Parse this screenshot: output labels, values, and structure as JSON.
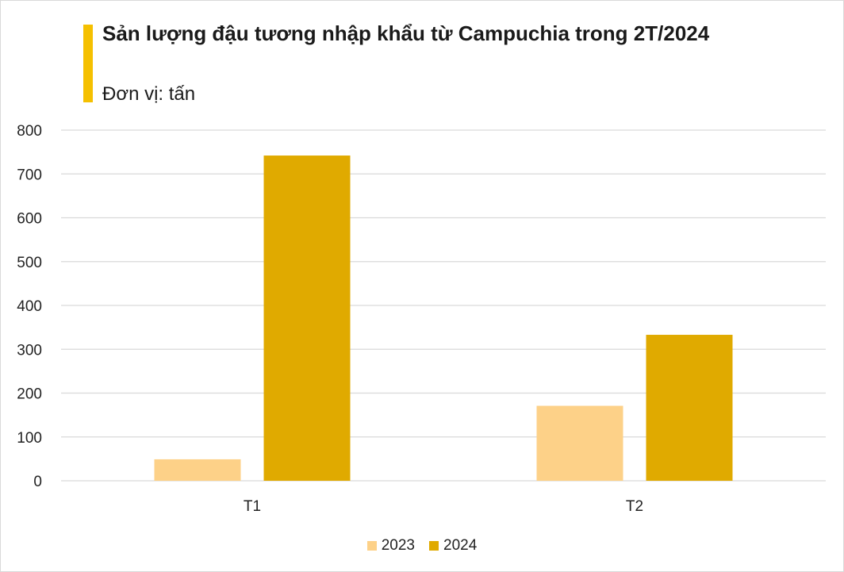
{
  "chart_data": {
    "type": "bar",
    "title": "Sản lượng đậu tương nhập khẩu từ Campuchia trong 2T/2024",
    "subtitle": "Đơn vị: tấn",
    "categories": [
      "T1",
      "T2"
    ],
    "series": [
      {
        "name": "2023",
        "values": [
          49,
          171
        ],
        "color": "#fdd188"
      },
      {
        "name": "2024",
        "values": [
          742,
          333
        ],
        "color": "#e0aa00"
      }
    ],
    "ylim": [
      0,
      800
    ],
    "yticks": [
      "0",
      "100",
      "200",
      "300",
      "400",
      "500",
      "600",
      "700",
      "800"
    ],
    "grid": true,
    "legend": "bottom",
    "accent_color": "#f5c000"
  }
}
